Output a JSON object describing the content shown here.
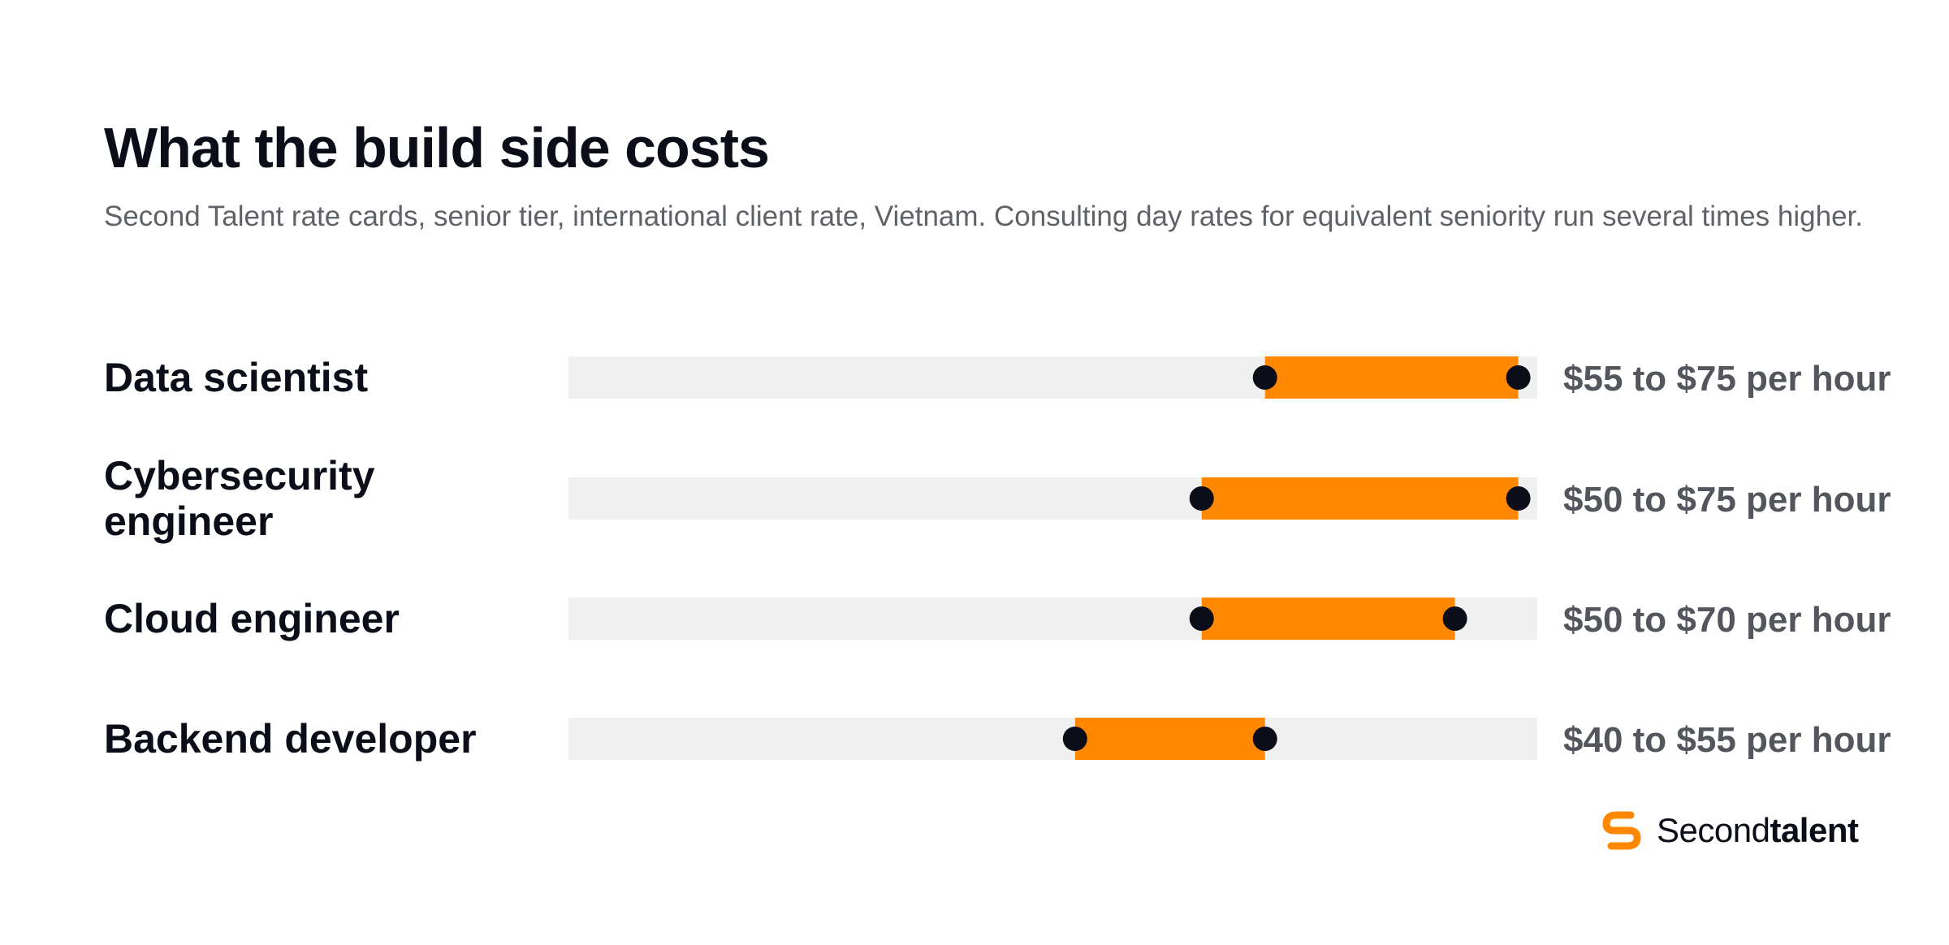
{
  "header": {
    "title": "What the build side costs",
    "subtitle": "Second Talent rate cards, senior tier, international client rate, Vietnam. Consulting day rates for equivalent seniority run several times higher."
  },
  "brand": {
    "name_light": "Second",
    "name_bold": "talent",
    "icon": "second-talent-logo-icon",
    "accent_color": "#ff8800"
  },
  "colors": {
    "range_fill": "#ff8800",
    "track": "#eff0ef",
    "endpoint": "#0b0d18"
  },
  "chart_data": {
    "type": "range-bar",
    "title": "What the build side costs",
    "categories": [
      "Data scientist",
      "Cybersecurity engineer",
      "Cloud engineer",
      "Backend developer"
    ],
    "category_lines": [
      [
        "Data scientist"
      ],
      [
        "Cybersecurity",
        "engineer"
      ],
      [
        "Cloud engineer"
      ],
      [
        "Backend developer"
      ]
    ],
    "ranges": [
      {
        "low": 55,
        "high": 75,
        "label": "$55 to $75 per hour"
      },
      {
        "low": 50,
        "high": 75,
        "label": "$50 to $75 per hour"
      },
      {
        "low": 50,
        "high": 70,
        "label": "$50 to $70 per hour"
      },
      {
        "low": 40,
        "high": 55,
        "label": "$40 to $55 per hour"
      }
    ],
    "x_unit": "USD per hour",
    "xlim": [
      0,
      76.5
    ],
    "grid": false,
    "legend": "none"
  }
}
